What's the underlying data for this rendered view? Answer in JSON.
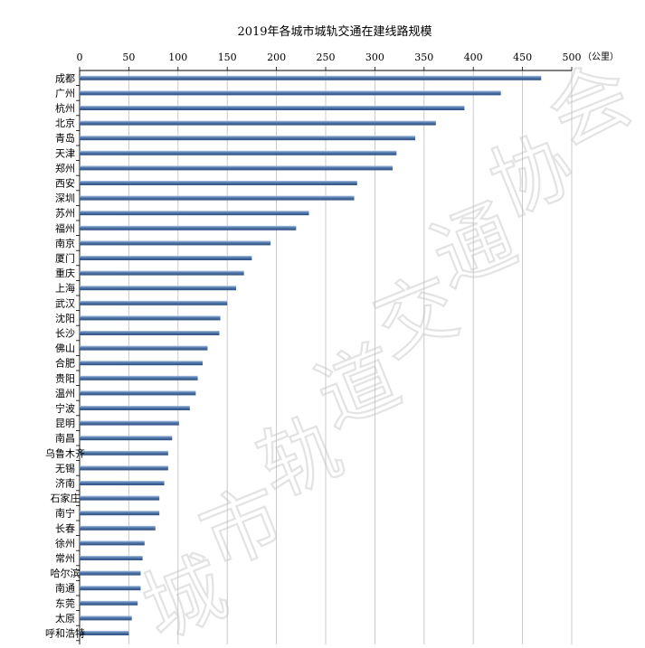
{
  "chart_data": {
    "type": "bar",
    "orientation": "horizontal",
    "title": "2019年各城市城轨交通在建线路规模",
    "unit_label": "（公里）",
    "xlim": [
      0,
      500
    ],
    "ticks": [
      0,
      50,
      100,
      150,
      200,
      250,
      300,
      350,
      400,
      450,
      500
    ],
    "axis_position": "top",
    "grid": true,
    "bar_color": "#4f74a8",
    "bar_highlight": "#a9c2e3",
    "grid_color": "#bfbfbf",
    "watermark_text": "城市轨道交通协会",
    "categories": [
      "成都",
      "广州",
      "杭州",
      "北京",
      "青岛",
      "天津",
      "郑州",
      "西安",
      "深圳",
      "苏州",
      "福州",
      "南京",
      "厦门",
      "重庆",
      "上海",
      "武汉",
      "沈阳",
      "长沙",
      "佛山",
      "合肥",
      "贵阳",
      "温州",
      "宁波",
      "昆明",
      "南昌",
      "乌鲁木齐",
      "无锡",
      "济南",
      "石家庄",
      "南宁",
      "长春",
      "徐州",
      "常州",
      "哈尔滨",
      "南通",
      "东莞",
      "太原",
      "呼和浩特"
    ],
    "values": [
      469,
      428,
      391,
      362,
      341,
      322,
      318,
      282,
      279,
      233,
      220,
      194,
      175,
      167,
      159,
      150,
      143,
      142,
      130,
      125,
      120,
      118,
      112,
      101,
      94,
      90,
      90,
      86,
      81,
      81,
      77,
      66,
      64,
      62,
      62,
      59,
      53,
      50
    ]
  }
}
